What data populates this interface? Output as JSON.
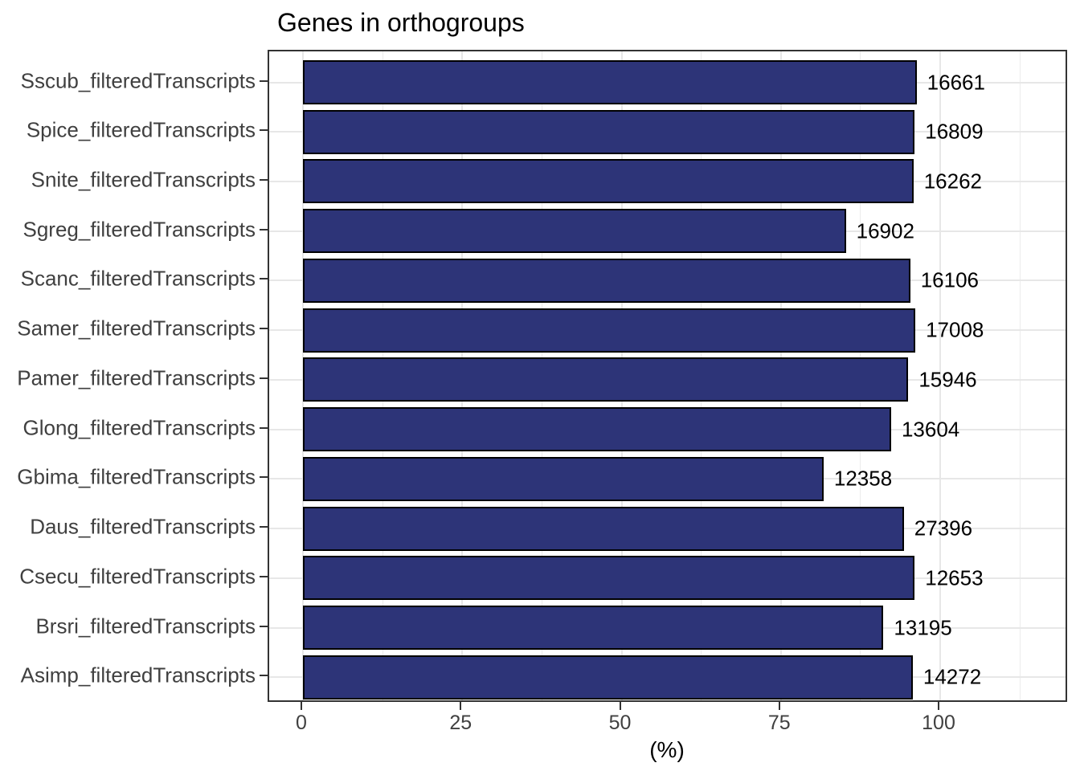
{
  "title": "Genes in orthogroups",
  "colors": {
    "bar_fill": "#2D3478",
    "bar_border": "#000000",
    "grid": "#E7E7E7",
    "panel_border": "#333333",
    "axis_text": "#404040",
    "tick": "#333333",
    "label_text": "#000000",
    "background": "#FFFFFF"
  },
  "chart_data": {
    "type": "bar",
    "orientation": "horizontal",
    "title": "Genes in orthogroups",
    "xlabel": "(%)",
    "ylabel": "",
    "categories": [
      "Sscub_filteredTranscripts",
      "Spice_filteredTranscripts",
      "Snite_filteredTranscripts",
      "Sgreg_filteredTranscripts",
      "Scanc_filteredTranscripts",
      "Samer_filteredTranscripts",
      "Pamer_filteredTranscripts",
      "Glong_filteredTranscripts",
      "Gbima_filteredTranscripts",
      "Daus_filteredTranscripts",
      "Csecu_filteredTranscripts",
      "Brsri_filteredTranscripts",
      "Asimp_filteredTranscripts"
    ],
    "values_percent": [
      96.3,
      96.0,
      95.8,
      85.2,
      95.3,
      96.1,
      95.0,
      92.3,
      81.7,
      94.3,
      96.0,
      91.1,
      95.7
    ],
    "bar_labels": [
      16661,
      16809,
      16262,
      16902,
      16106,
      17008,
      15946,
      13604,
      12358,
      27396,
      12653,
      13195,
      14272
    ],
    "x_ticks": [
      0,
      25,
      50,
      75,
      100
    ],
    "x_minor_gridlines": [
      12.5,
      37.5,
      62.5,
      87.5,
      112.5
    ],
    "xlim": [
      -5.3,
      120.3
    ],
    "grid": true,
    "legend": false
  }
}
